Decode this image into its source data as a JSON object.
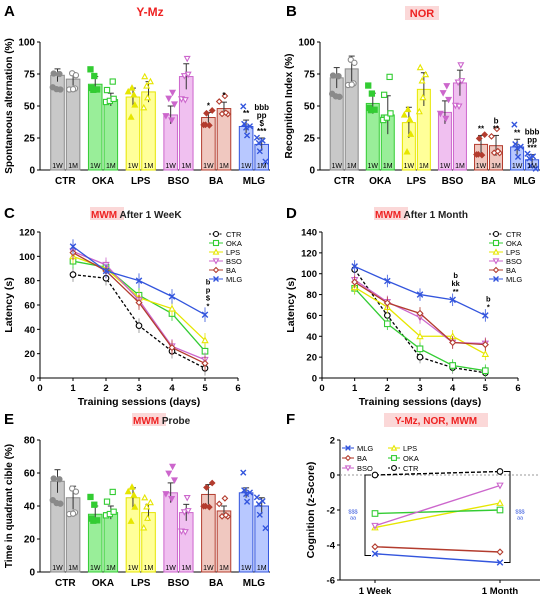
{
  "colors": {
    "CTR": "#8a8a8a",
    "OKA": "#33cc33",
    "LPS": "#e6e600",
    "BSO": "#cc66cc",
    "BA": "#b33c2e",
    "MLG": "#3355dd",
    "CTR_fill": "#c8c8c8",
    "OKA_fill": "#99ee99",
    "LPS_fill": "#ffff99",
    "BSO_fill": "#f0c0f0",
    "BA_fill": "#f0c8c0",
    "MLG_fill": "#b8c8ff",
    "title_red": "#ee2222",
    "title_bg": "#fbd8d8"
  },
  "panels": {
    "A": {
      "letter": "A",
      "title": "Y-Mz"
    },
    "B": {
      "letter": "B",
      "title": "NOR"
    },
    "C": {
      "letter": "C",
      "title_a": "MWM",
      "title_b": " After 1 WeeK"
    },
    "D": {
      "letter": "D",
      "title_a": "MWM",
      "title_b": " After 1 Month"
    },
    "E": {
      "letter": "E",
      "title_a": "MWM",
      "title_b": " Probe"
    },
    "F": {
      "letter": "F",
      "title": "Y-Mz, NOR, MWM"
    }
  },
  "chart_data": [
    {
      "panel": "A",
      "type": "bar",
      "ylabel": "Spontaneous alternation (%)",
      "ylim": [
        0,
        100
      ],
      "yticks": [
        0,
        25,
        50,
        75,
        100
      ],
      "categories": [
        "CTR",
        "OKA",
        "LPS",
        "BSO",
        "BA",
        "MLG"
      ],
      "sublabels": [
        "1W",
        "1M"
      ],
      "series": [
        {
          "name": "1W",
          "values": [
            74,
            67,
            57,
            43,
            41,
            34
          ],
          "errors": [
            5,
            6,
            7,
            7,
            4,
            5
          ]
        },
        {
          "name": "1M",
          "values": [
            71,
            55,
            61,
            73,
            48,
            20
          ],
          "errors": [
            5,
            5,
            8,
            10,
            5,
            5
          ]
        }
      ],
      "annotations": [
        {
          "group": "BA",
          "bar": "1W",
          "lines": [
            "*"
          ]
        },
        {
          "group": "BA",
          "bar": "1M",
          "lines": [
            "*"
          ]
        },
        {
          "group": "MLG",
          "bar": "1W",
          "lines": [
            "**"
          ]
        },
        {
          "group": "MLG",
          "bar": "1M",
          "lines": [
            "bbb",
            "pp",
            "$",
            "***"
          ]
        }
      ]
    },
    {
      "panel": "B",
      "type": "bar",
      "ylabel": "Recognition Index (%)",
      "ylim": [
        0,
        100
      ],
      "yticks": [
        0,
        25,
        50,
        75,
        100
      ],
      "categories": [
        "CTR",
        "OKA",
        "LPS",
        "BSO",
        "BA",
        "MLG"
      ],
      "sublabels": [
        "1W",
        "1M"
      ],
      "series": [
        {
          "name": "1W",
          "values": [
            72,
            52,
            37,
            45,
            20,
            18
          ],
          "errors": [
            8,
            8,
            12,
            9,
            7,
            6
          ]
        },
        {
          "name": "1M",
          "values": [
            79,
            43,
            63,
            68,
            19,
            8
          ],
          "errors": [
            10,
            15,
            13,
            10,
            8,
            4
          ]
        }
      ],
      "annotations": [
        {
          "group": "BA",
          "bar": "1W",
          "lines": [
            "**"
          ]
        },
        {
          "group": "BA",
          "bar": "1M",
          "lines": [
            "b",
            "**"
          ]
        },
        {
          "group": "MLG",
          "bar": "1W",
          "lines": [
            "**"
          ]
        },
        {
          "group": "MLG",
          "bar": "1M",
          "lines": [
            "bbb",
            "pp",
            "***"
          ]
        }
      ]
    },
    {
      "panel": "C",
      "type": "line",
      "xlabel": "Training sessions (days)",
      "ylabel": "Latency (s)",
      "xlim": [
        0,
        6
      ],
      "ylim": [
        0,
        120
      ],
      "xticks": [
        0,
        1,
        2,
        3,
        4,
        5,
        6
      ],
      "yticks": [
        0,
        20,
        40,
        60,
        80,
        100,
        120
      ],
      "x": [
        1,
        2,
        3,
        4,
        5
      ],
      "series": [
        {
          "name": "CTR",
          "values": [
            85,
            82,
            43,
            22,
            8
          ]
        },
        {
          "name": "OKA",
          "values": [
            96,
            91,
            68,
            53,
            22
          ]
        },
        {
          "name": "LPS",
          "values": [
            100,
            90,
            66,
            57,
            31
          ]
        },
        {
          "name": "BSO",
          "values": [
            104,
            93,
            64,
            26,
            15
          ]
        },
        {
          "name": "BA",
          "values": [
            103,
            88,
            62,
            25,
            12
          ]
        },
        {
          "name": "MLG",
          "values": [
            108,
            88,
            80,
            67,
            52
          ]
        }
      ],
      "legend_position": "right",
      "annotation": {
        "x": 5,
        "lines": [
          "b",
          "p",
          "$",
          "*"
        ]
      }
    },
    {
      "panel": "D",
      "type": "line",
      "xlabel": "Training sessions (days)",
      "ylabel": "Latency (s)",
      "xlim": [
        0,
        6
      ],
      "ylim": [
        0,
        140
      ],
      "xticks": [
        0,
        1,
        2,
        3,
        4,
        5,
        6
      ],
      "yticks": [
        0,
        20,
        40,
        60,
        80,
        100,
        120,
        140
      ],
      "x": [
        1,
        2,
        3,
        4,
        5
      ],
      "series": [
        {
          "name": "CTR",
          "values": [
            104,
            60,
            20,
            10,
            5
          ]
        },
        {
          "name": "OKA",
          "values": [
            86,
            52,
            28,
            12,
            7
          ]
        },
        {
          "name": "LPS",
          "values": [
            87,
            68,
            40,
            40,
            23
          ]
        },
        {
          "name": "BSO",
          "values": [
            94,
            73,
            58,
            34,
            33
          ]
        },
        {
          "name": "BA",
          "values": [
            92,
            72,
            62,
            34,
            32
          ]
        },
        {
          "name": "MLG",
          "values": [
            107,
            93,
            80,
            75,
            60
          ]
        }
      ],
      "legend_position": "right",
      "annotations": [
        {
          "x": 4,
          "lines": [
            "b",
            "kk",
            "**"
          ]
        },
        {
          "x": 5,
          "lines": [
            "b",
            "*"
          ]
        }
      ]
    },
    {
      "panel": "E",
      "type": "bar",
      "ylabel": "Time in quadrant cible (%)",
      "ylim": [
        0,
        80
      ],
      "yticks": [
        0,
        20,
        40,
        60,
        80
      ],
      "categories": [
        "CTR",
        "OKA",
        "LPS",
        "BSO",
        "BA",
        "MLG"
      ],
      "sublabels": [
        "1W",
        "1M"
      ],
      "series": [
        {
          "name": "1W",
          "values": [
            55,
            35,
            45,
            48,
            47,
            48
          ],
          "errors": [
            7,
            5,
            6,
            6,
            6,
            3
          ]
        },
        {
          "name": "1M",
          "values": [
            45,
            36,
            36,
            36,
            37,
            40
          ],
          "errors": [
            7,
            4,
            5,
            5,
            3,
            5
          ]
        }
      ]
    },
    {
      "panel": "F",
      "type": "line",
      "ylabel": "Cognition (z-Score)",
      "categories": [
        "1 Week",
        "1 Month"
      ],
      "ylim": [
        -6,
        2
      ],
      "yticks": [
        -6,
        -4,
        -2,
        0,
        2
      ],
      "series": [
        {
          "name": "MLG",
          "values": [
            -4.5,
            -5.0
          ]
        },
        {
          "name": "LPS",
          "values": [
            -3.0,
            -1.6
          ]
        },
        {
          "name": "BA",
          "values": [
            -4.1,
            -4.4
          ]
        },
        {
          "name": "OKA",
          "values": [
            -2.2,
            -2.0
          ]
        },
        {
          "name": "BSO",
          "values": [
            -2.9,
            -0.6
          ]
        },
        {
          "name": "CTR",
          "values": [
            0.0,
            0.2
          ]
        }
      ],
      "brackets": [
        {
          "side": "left",
          "lines": [
            "$$$",
            "aa"
          ]
        },
        {
          "side": "right",
          "lines": [
            "$$$",
            "aa"
          ]
        }
      ],
      "legend_position": "top-left"
    }
  ]
}
